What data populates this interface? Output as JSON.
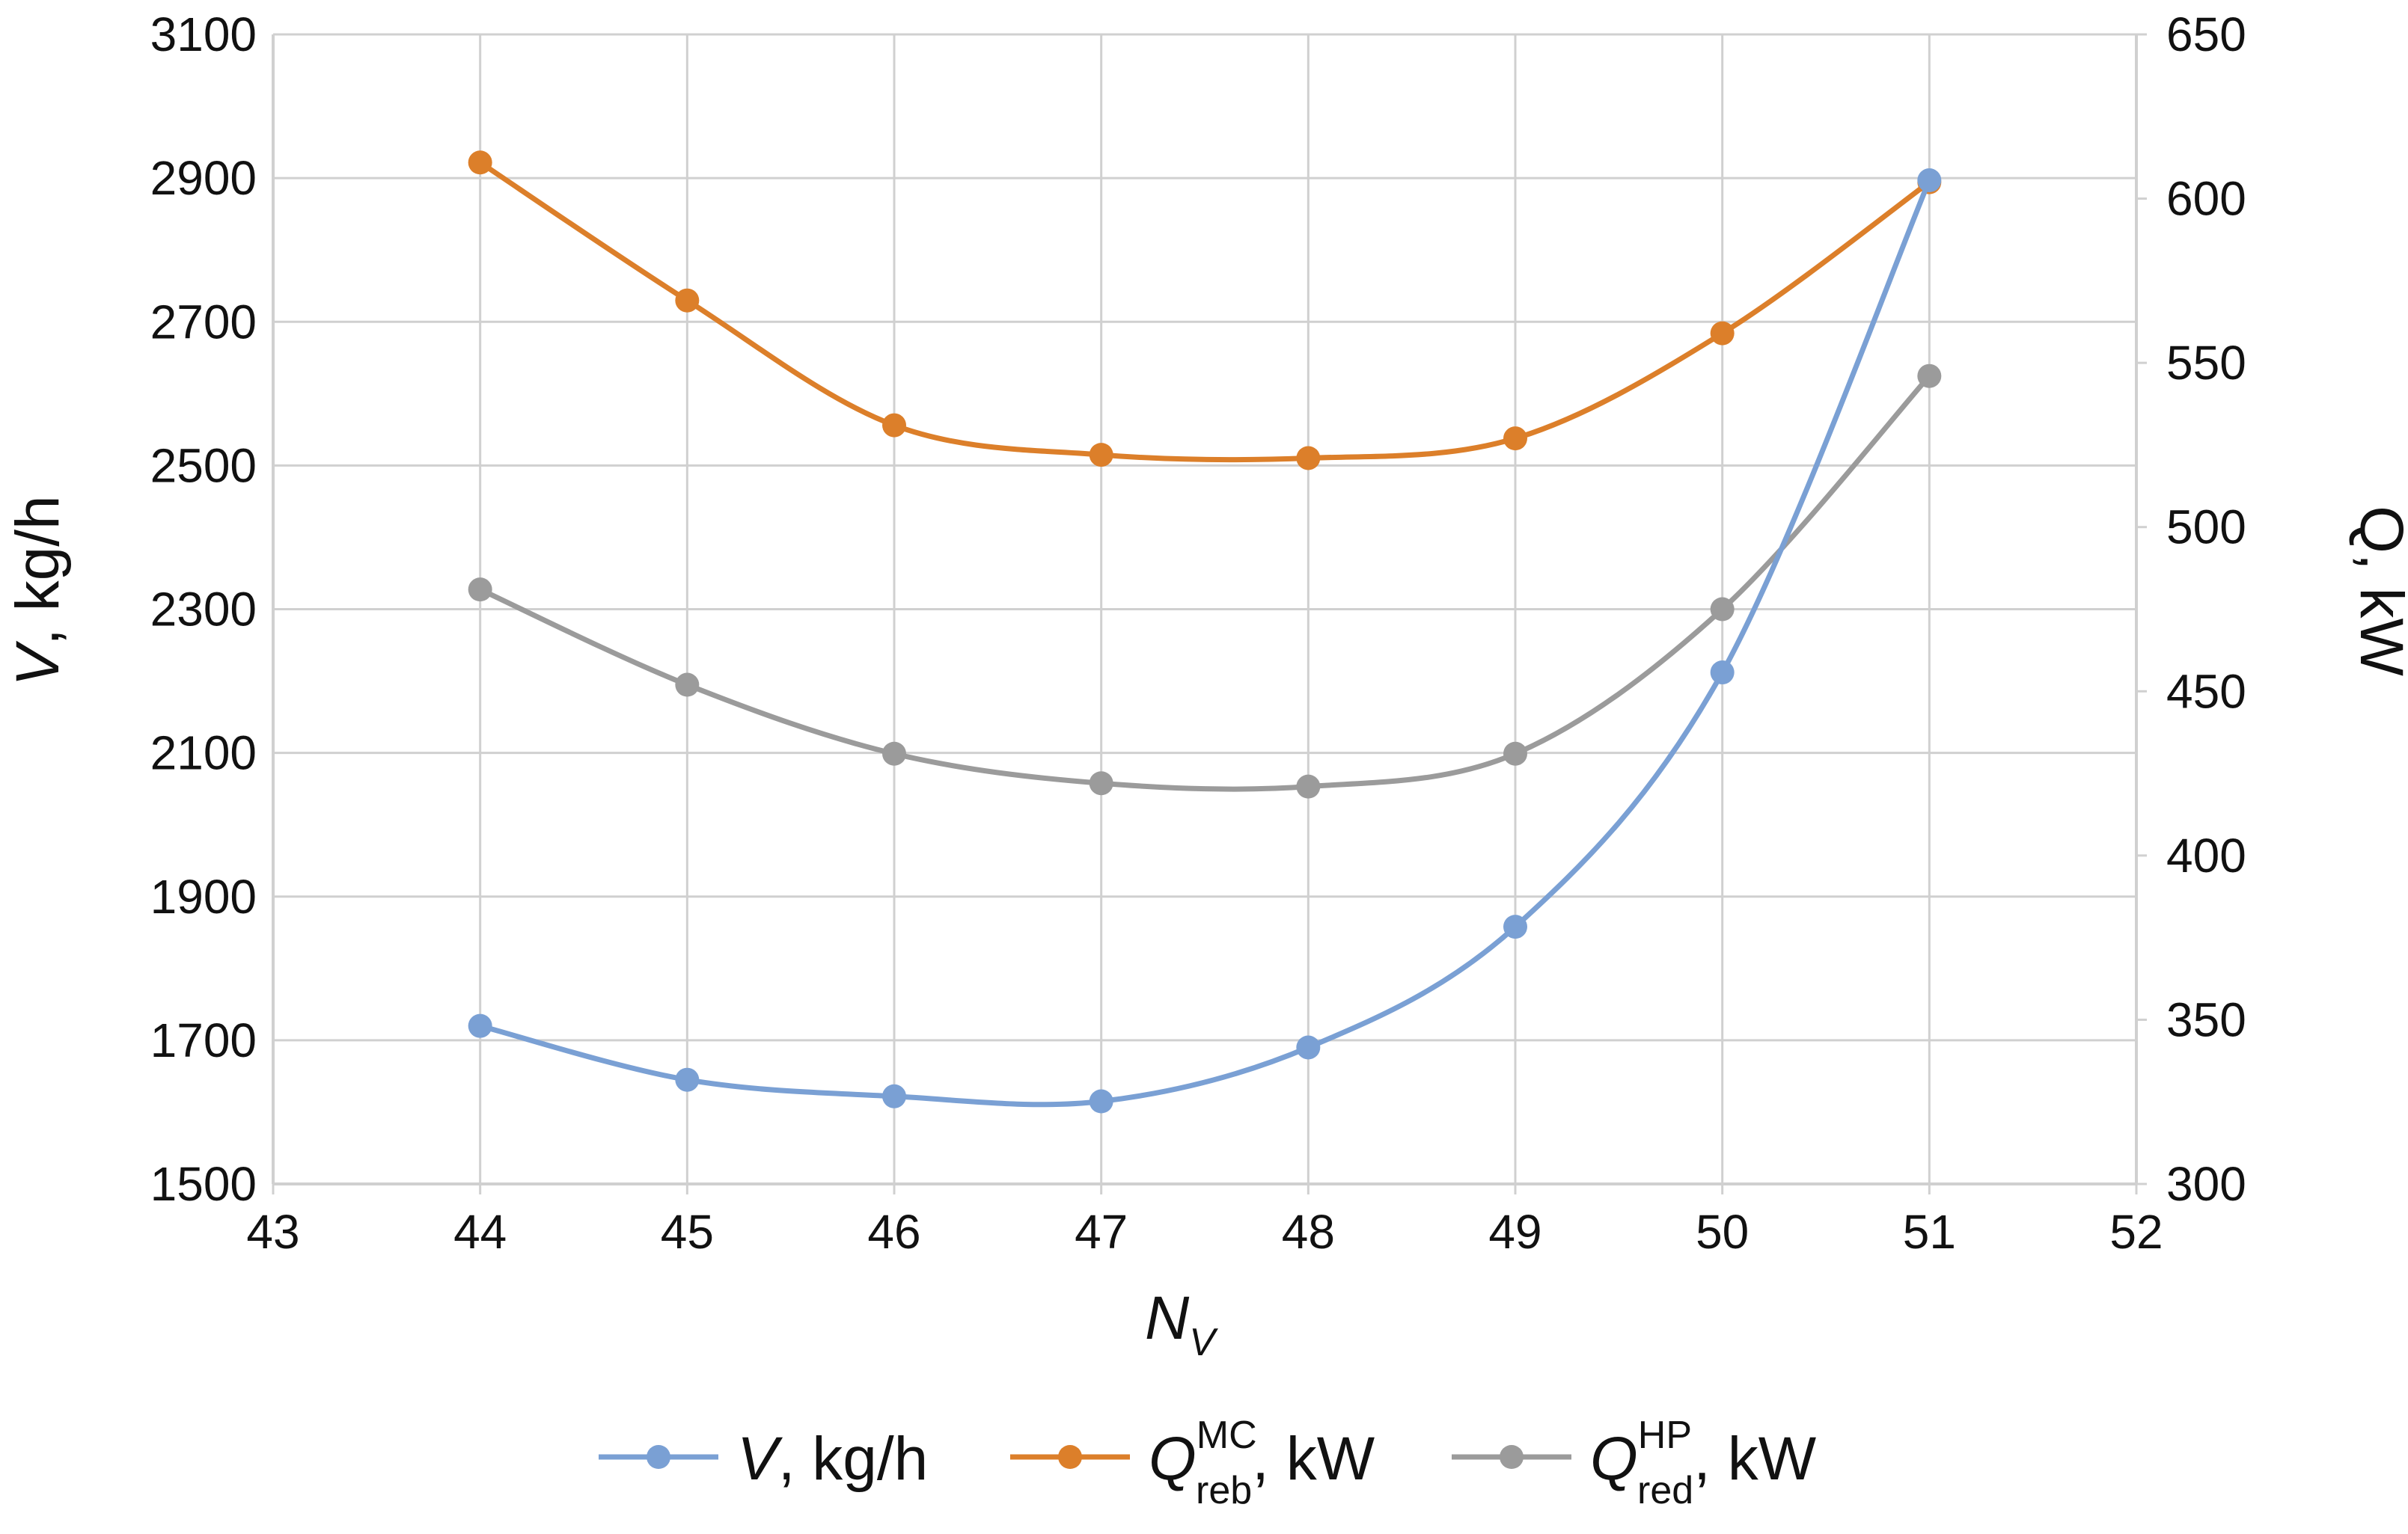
{
  "chart_data": {
    "type": "line",
    "x": [
      44,
      45,
      46,
      47,
      48,
      49,
      50,
      51
    ],
    "xlim": [
      43,
      52
    ],
    "x_ticks": [
      "43",
      "44",
      "45",
      "46",
      "47",
      "48",
      "49",
      "50",
      "51",
      "52"
    ],
    "ylim_left": [
      1500,
      3100
    ],
    "y_left_ticks": [
      "1500",
      "1700",
      "1900",
      "2100",
      "2300",
      "2500",
      "2700",
      "2900",
      "3100"
    ],
    "ylim_right": [
      300,
      650
    ],
    "y_right_ticks": [
      "300",
      "350",
      "400",
      "450",
      "500",
      "550",
      "600",
      "650"
    ],
    "xlabel": {
      "main": "N",
      "sub": "V"
    },
    "ylabel_left": {
      "var": "V",
      "unit": ", kg/h"
    },
    "ylabel_right": "Q, kW",
    "grid": true,
    "legend_position": "bottom",
    "series": [
      {
        "key": "v",
        "axis": "left",
        "color": "#7aa0d4",
        "values": [
          1720,
          1645,
          1622,
          1615,
          1690,
          1858,
          2212,
          2897
        ],
        "legend": {
          "var": "V",
          "unit": ", kg/h"
        }
      },
      {
        "key": "qreb",
        "axis": "right",
        "color": "#dc7f2a",
        "values": [
          611,
          569,
          531,
          522,
          521,
          527,
          559,
          605
        ],
        "legend": {
          "var": "Q",
          "sup": "MC",
          "sub": "reb",
          "unit": ", kW"
        }
      },
      {
        "key": "qred",
        "axis": "right",
        "color": "#9b9b9b",
        "values": [
          481,
          452,
          431,
          422,
          421,
          431,
          475,
          546
        ],
        "legend": {
          "var": "Q",
          "sup": "HP",
          "sub": "red",
          "unit": ", kW"
        }
      }
    ]
  }
}
